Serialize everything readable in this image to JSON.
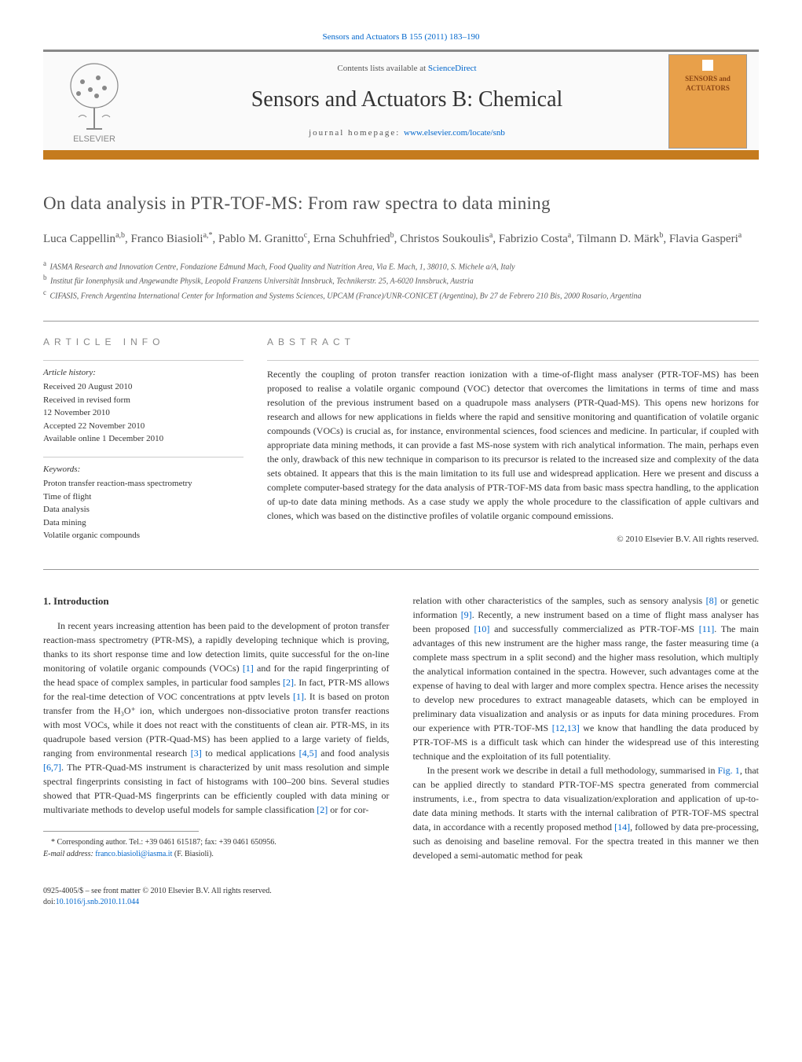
{
  "journal_ref": "Sensors and Actuators B 155 (2011) 183–190",
  "header": {
    "contents_prefix": "Contents lists available at ",
    "contents_link": "ScienceDirect",
    "journal_title": "Sensors and Actuators B: Chemical",
    "homepage_prefix": "journal homepage: ",
    "homepage_link": "www.elsevier.com/locate/snb",
    "publisher": "ELSEVIER",
    "cover_text1": "SENSORS and",
    "cover_text2": "ACTUATORS"
  },
  "paper": {
    "title": "On data analysis in PTR-TOF-MS: From raw spectra to data mining",
    "authors_html": "Luca Cappellin<sup>a,b</sup>, Franco Biasioli<sup>a,*</sup>, Pablo M. Granitto<sup>c</sup>, Erna Schuhfried<sup>b</sup>, Christos Soukoulis<sup>a</sup>, Fabrizio Costa<sup>a</sup>, Tilmann D. Märk<sup>b</sup>, Flavia Gasperi<sup>a</sup>",
    "affiliations": [
      "IASMA Research and Innovation Centre, Fondazione Edmund Mach, Food Quality and Nutrition Area, Via E. Mach, 1, 38010, S. Michele a/A, Italy",
      "Institut für Ionenphysik und Angewandte Physik, Leopold Franzens Universität Innsbruck, Technikerstr. 25, A-6020 Innsbruck, Austria",
      "CIFASIS, French Argentina International Center for Information and Systems Sciences, UPCAM (France)/UNR-CONICET (Argentina), Bv 27 de Febrero 210 Bis, 2000 Rosario, Argentina"
    ],
    "aff_labels": [
      "a",
      "b",
      "c"
    ]
  },
  "article_info": {
    "heading": "ARTICLE INFO",
    "history_label": "Article history:",
    "history": [
      "Received 20 August 2010",
      "Received in revised form",
      "12 November 2010",
      "Accepted 22 November 2010",
      "Available online 1 December 2010"
    ],
    "keywords_label": "Keywords:",
    "keywords": [
      "Proton transfer reaction-mass spectrometry",
      "Time of flight",
      "Data analysis",
      "Data mining",
      "Volatile organic compounds"
    ]
  },
  "abstract": {
    "heading": "ABSTRACT",
    "text": "Recently the coupling of proton transfer reaction ionization with a time-of-flight mass analyser (PTR-TOF-MS) has been proposed to realise a volatile organic compound (VOC) detector that overcomes the limitations in terms of time and mass resolution of the previous instrument based on a quadrupole mass analysers (PTR-Quad-MS). This opens new horizons for research and allows for new applications in fields where the rapid and sensitive monitoring and quantification of volatile organic compounds (VOCs) is crucial as, for instance, environmental sciences, food sciences and medicine. In particular, if coupled with appropriate data mining methods, it can provide a fast MS-nose system with rich analytical information. The main, perhaps even the only, drawback of this new technique in comparison to its precursor is related to the increased size and complexity of the data sets obtained. It appears that this is the main limitation to its full use and widespread application. Here we present and discuss a complete computer-based strategy for the data analysis of PTR-TOF-MS data from basic mass spectra handling, to the application of up-to date data mining methods. As a case study we apply the whole procedure to the classification of apple cultivars and clones, which was based on the distinctive profiles of volatile organic compound emissions.",
    "copyright": "© 2010 Elsevier B.V. All rights reserved."
  },
  "body": {
    "section_number": "1.",
    "section_title": "Introduction",
    "col1_p1": "In recent years increasing attention has been paid to the development of proton transfer reaction-mass spectrometry (PTR-MS), a rapidly developing technique which is proving, thanks to its short response time and low detection limits, quite successful for the on-line monitoring of volatile organic compounds (VOCs) [1] and for the rapid fingerprinting of the head space of complex samples, in particular food samples [2]. In fact, PTR-MS allows for the real-time detection of VOC concentrations at pptv levels [1]. It is based on proton transfer from the H₃O⁺ ion, which undergoes non-dissociative proton transfer reactions with most VOCs, while it does not react with the constituents of clean air. PTR-MS, in its quadrupole based version (PTR-Quad-MS) has been applied to a large variety of fields, ranging from environmental research [3] to medical applications [4,5] and food analysis [6,7]. The PTR-Quad-MS instrument is characterized by unit mass resolution and simple spectral fingerprints consisting in fact of histograms with 100–200 bins. Several studies showed that PTR-Quad-MS fingerprints can be efficiently coupled with data mining or multivariate methods to develop useful models for sample classification [2] or for cor-",
    "col2_p1": "relation with other characteristics of the samples, such as sensory analysis [8] or genetic information [9]. Recently, a new instrument based on a time of flight mass analyser has been proposed [10] and successfully commercialized as PTR-TOF-MS [11]. The main advantages of this new instrument are the higher mass range, the faster measuring time (a complete mass spectrum in a split second) and the higher mass resolution, which multiply the analytical information contained in the spectra. However, such advantages come at the expense of having to deal with larger and more complex spectra. Hence arises the necessity to develop new procedures to extract manageable datasets, which can be employed in preliminary data visualization and analysis or as inputs for data mining procedures. From our experience with PTR-TOF-MS [12,13] we know that handling the data produced by PTR-TOF-MS is a difficult task which can hinder the widespread use of this interesting technique and the exploitation of its full potentiality.",
    "col2_p2": "In the present work we describe in detail a full methodology, summarised in Fig. 1, that can be applied directly to standard PTR-TOF-MS spectra generated from commercial instruments, i.e., from spectra to data visualization/exploration and application of up-to-date data mining methods. It starts with the internal calibration of PTR-TOF-MS spectral data, in accordance with a recently proposed method [14], followed by data pre-processing, such as denoising and baseline removal. For the spectra treated in this manner we then developed a semi-automatic method for peak",
    "refs_col1": {
      "r1": "[1]",
      "r2": "[2]",
      "r3": "[1]",
      "r4": "[3]",
      "r5": "[4,5]",
      "r6": "[6,7]",
      "r7": "[2]"
    },
    "refs_col2": {
      "r8": "[8]",
      "r9": "[9]",
      "r10": "[10]",
      "r11": "[11]",
      "r12": "[12,13]",
      "r14": "[14]",
      "fig1": "Fig. 1"
    }
  },
  "footnote": {
    "marker": "*",
    "text": "Corresponding author. Tel.: +39 0461 615187; fax: +39 0461 650956.",
    "email_label": "E-mail address:",
    "email": "franco.biasioli@iasma.it",
    "email_attrib": "(F. Biasioli)."
  },
  "footer": {
    "line1": "0925-4005/$ – see front matter © 2010 Elsevier B.V. All rights reserved.",
    "doi_prefix": "doi:",
    "doi": "10.1016/j.snb.2010.11.044"
  },
  "colors": {
    "accent_orange": "#c57b1e",
    "link_blue": "#0066cc",
    "text_gray": "#555555",
    "border_gray": "#999999"
  }
}
